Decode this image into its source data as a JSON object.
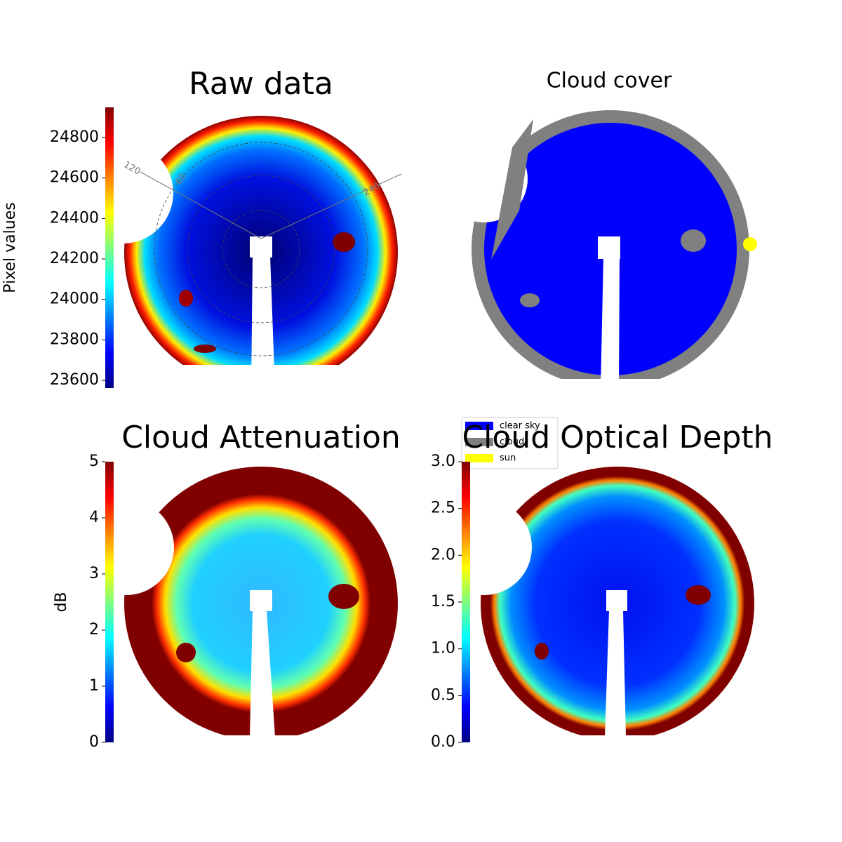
{
  "chart_data": [
    {
      "type": "image",
      "title": "Raw data",
      "colorbar_label": "Pixel values",
      "colormap": "jet",
      "ylim": [
        23562,
        24949
      ],
      "yticks": [
        23600,
        23800,
        24000,
        24200,
        24400,
        24600,
        24800
      ],
      "annotations": [
        "120",
        "60",
        "240"
      ]
    },
    {
      "type": "categorical-image",
      "title": "Cloud cover",
      "categories": [
        "clear sky",
        "cloud",
        "sun"
      ],
      "colors": [
        "#0000ff",
        "#808080",
        "#ffff00"
      ]
    },
    {
      "type": "image",
      "title": "Cloud Attenuation",
      "colorbar_label": "dB",
      "colormap": "jet",
      "ylim": [
        0,
        5
      ],
      "yticks": [
        0,
        1,
        2,
        3,
        4,
        5
      ]
    },
    {
      "type": "image",
      "title": "Cloud Optical Depth",
      "colormap": "jet",
      "ylim": [
        0,
        3
      ],
      "yticks": [
        {
          "value": 0,
          "label": "0.0"
        },
        0.5,
        {
          "value": 1,
          "label": "1.0"
        },
        1.5,
        {
          "value": 2,
          "label": "2.0"
        },
        2.5,
        {
          "value": 3,
          "label": "3.0"
        }
      ]
    }
  ]
}
